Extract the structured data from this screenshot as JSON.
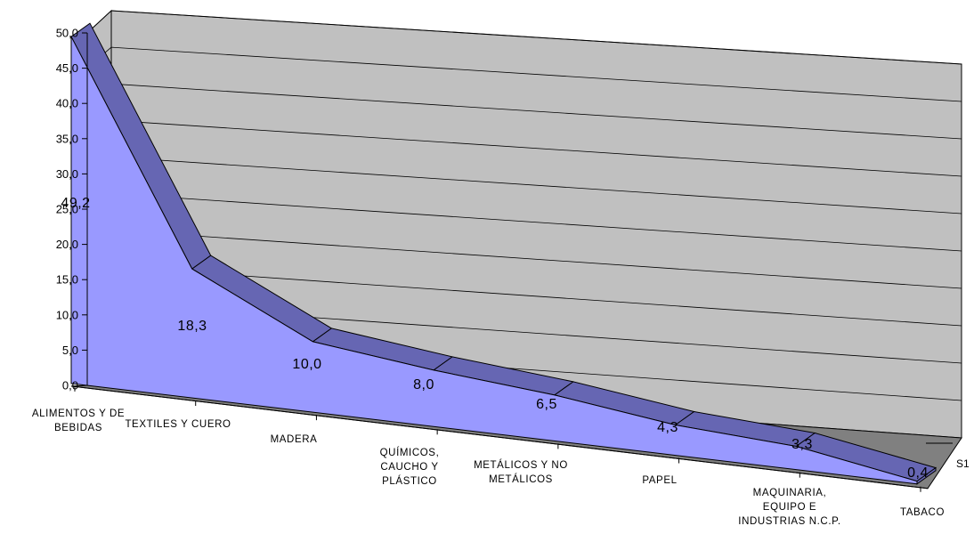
{
  "chart_data": {
    "type": "area",
    "title": "",
    "xlabel": "",
    "ylabel": "",
    "categories": [
      [
        "ALIMENTOS Y DE",
        "BEBIDAS"
      ],
      [
        "TEXTILES Y CUERO"
      ],
      [
        "MADERA"
      ],
      [
        "QUÍMICOS,",
        "CAUCHO Y",
        "PLÁSTICO"
      ],
      [
        "METÁLICOS Y NO",
        "METÁLICOS"
      ],
      [
        "PAPEL"
      ],
      [
        "MAQUINARIA,",
        "EQUIPO E",
        "INDUSTRIAS N.C.P."
      ],
      [
        "TABACO"
      ]
    ],
    "series": [
      {
        "name": "S1",
        "values": [
          49.2,
          18.3,
          10.0,
          8.0,
          6.5,
          4.3,
          3.3,
          0.4
        ],
        "labels": [
          "49,2",
          "18,3",
          "10,0",
          "8,0",
          "6,5",
          "4,3",
          "3,3",
          "0,4"
        ]
      }
    ],
    "y_ticks": [
      "0,0",
      "5,0",
      "10,0",
      "15,0",
      "20,0",
      "25,0",
      "30,0",
      "35,0",
      "40,0",
      "45,0",
      "50,0"
    ],
    "ylim": [
      0,
      50
    ],
    "grid": true,
    "legend": "none",
    "colors": {
      "area_front": "#9999ff",
      "area_top": "#6666b3",
      "floor": "#808080",
      "back_wall": "#c0c0c0",
      "gridline": "#000000"
    }
  }
}
